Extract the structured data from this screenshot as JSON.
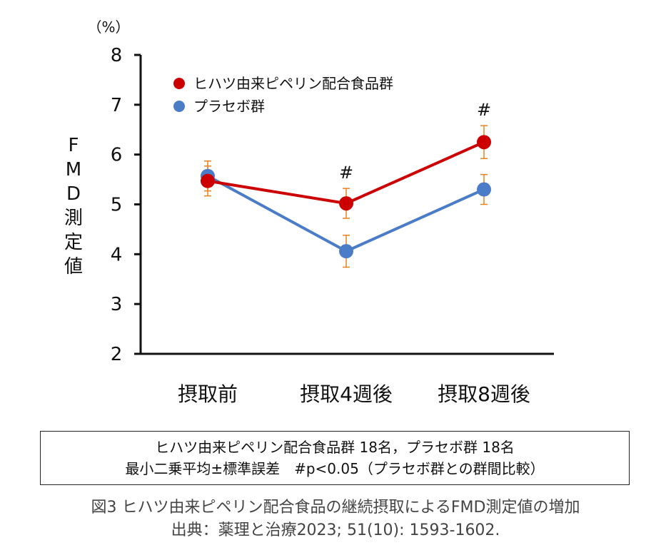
{
  "chart_data": {
    "type": "line",
    "unit_label": "（%）",
    "ylabel_chars": [
      "F",
      "M",
      "D",
      "測",
      "定",
      "値"
    ],
    "ylim": [
      2,
      8
    ],
    "yticks": [
      "2",
      "3",
      "4",
      "5",
      "6",
      "7",
      "8"
    ],
    "categories": [
      "摂取前",
      "摂取4週後",
      "摂取8週後"
    ],
    "series": [
      {
        "name": "ヒハツ由来ピペリン配合食品群",
        "color": "#cc0000",
        "values": [
          5.47,
          5.02,
          6.25
        ],
        "errors": [
          0.3,
          0.3,
          0.33
        ]
      },
      {
        "name": "プラセボ群",
        "color": "#4a7cc7",
        "values": [
          5.57,
          4.06,
          5.3
        ],
        "errors": [
          0.3,
          0.32,
          0.3
        ]
      }
    ],
    "error_bar_color": "#e8821e",
    "annotations": [
      {
        "category_index": 1,
        "text": "#"
      },
      {
        "category_index": 2,
        "text": "#"
      }
    ],
    "legend_position": "top-left"
  },
  "note": {
    "line1": "ヒハツ由来ピペリン配合食品群 18名，プラセボ群 18名",
    "line2": "最小二乗平均±標準誤差　#p<0.05（プラセボ群との群間比較）"
  },
  "caption": {
    "line1": "図3  ヒハツ由来ピペリン配合食品の継続摂取によるFMD測定値の増加",
    "line2": "出典：薬理と治療2023; 51(10): 1593-1602."
  }
}
